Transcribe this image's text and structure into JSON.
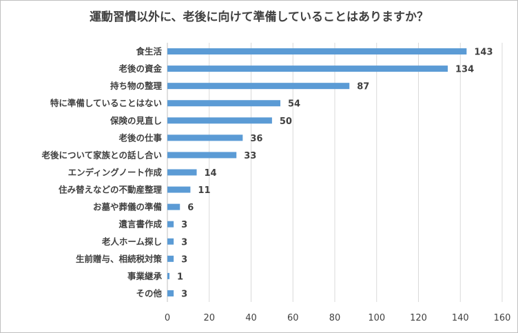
{
  "chart_data": {
    "type": "bar",
    "orientation": "horizontal",
    "title": "運動習慣以外に、老後に向けて準備していることはありますか？",
    "categories": [
      "食生活",
      "老後の資金",
      "持ち物の整理",
      "特に準備していることはない",
      "保険の見直し",
      "老後の仕事",
      "老後について家族との話し合い",
      "エンディングノート作成",
      "住み替えなどの不動産整理",
      "お墓や葬儀の準備",
      "遺言書作成",
      "老人ホーム探し",
      "生前贈与、相続税対策",
      "事業継承",
      "その他"
    ],
    "values": [
      143,
      134,
      87,
      54,
      50,
      36,
      33,
      14,
      11,
      6,
      3,
      3,
      3,
      1,
      3
    ],
    "xlim": [
      0,
      160
    ],
    "xticks": [
      0,
      20,
      40,
      60,
      80,
      100,
      120,
      140,
      160
    ],
    "xlabel": "",
    "ylabel": "",
    "grid": true,
    "bar_color": "#5b9bd5"
  }
}
